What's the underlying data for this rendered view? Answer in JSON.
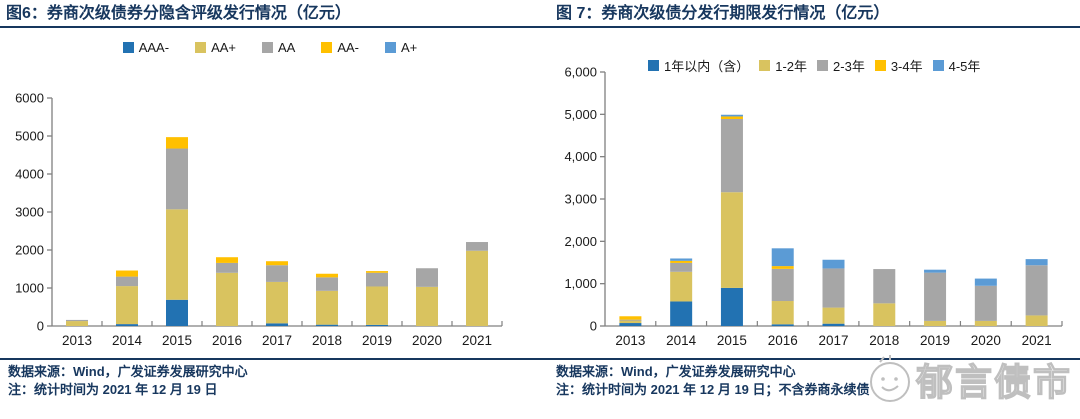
{
  "panels": [
    {
      "title": "图6：券商次级债券分隐含评级发行情况（亿元）",
      "footer_source": "数据来源：Wind，广发证券发展研究中心",
      "footer_note": "注：统计时间为 2021 年 12 月 19 日"
    },
    {
      "title": "图 7：券商次级债分发行期限发行情况（亿元）",
      "footer_source": "数据来源：Wind，广发证券发展研究中心",
      "footer_note": "注：统计时间为 2021 年 12 月 19 日；不含券商永续债",
      "watermark_text": "郁言债市"
    }
  ],
  "chart_data": [
    {
      "type": "bar",
      "stacked": true,
      "title": "图6：券商次级债券分隐含评级发行情况（亿元）",
      "categories": [
        "2013",
        "2014",
        "2015",
        "2016",
        "2017",
        "2018",
        "2019",
        "2020",
        "2021"
      ],
      "series": [
        {
          "name": "AAA-",
          "color": "#2272B2",
          "values": [
            0,
            50,
            690,
            0,
            70,
            35,
            30,
            0,
            0
          ]
        },
        {
          "name": "AA+",
          "color": "#D9C35F",
          "values": [
            130,
            1000,
            2380,
            1400,
            1090,
            890,
            1010,
            1030,
            1980
          ]
        },
        {
          "name": "AA",
          "color": "#A6A6A6",
          "values": [
            30,
            250,
            1600,
            260,
            440,
            355,
            360,
            490,
            230
          ]
        },
        {
          "name": "AA-",
          "color": "#FFC000",
          "values": [
            0,
            160,
            300,
            150,
            105,
            95,
            45,
            0,
            0
          ]
        },
        {
          "name": "A+",
          "color": "#5B9BD5",
          "values": [
            0,
            0,
            0,
            0,
            0,
            0,
            0,
            0,
            0
          ]
        }
      ],
      "ylim": [
        0,
        6000
      ],
      "ytick_step": 1000,
      "ytick_comma": false,
      "legend_position": "top-center",
      "grid": false
    },
    {
      "type": "bar",
      "stacked": true,
      "title": "图 7：券商次级债分发行期限发行情况（亿元）",
      "categories": [
        "2013",
        "2014",
        "2015",
        "2016",
        "2017",
        "2018",
        "2019",
        "2020",
        "2021"
      ],
      "series": [
        {
          "name": "1年以内（含）",
          "color": "#2272B2",
          "values": [
            70,
            580,
            900,
            40,
            55,
            0,
            0,
            0,
            0
          ]
        },
        {
          "name": "1-2年",
          "color": "#D9C35F",
          "values": [
            70,
            700,
            2260,
            550,
            380,
            535,
            120,
            120,
            250
          ]
        },
        {
          "name": "2-3年",
          "color": "#A6A6A6",
          "values": [
            10,
            210,
            1730,
            760,
            925,
            810,
            1140,
            830,
            1185
          ]
        },
        {
          "name": "3-4年",
          "color": "#FFC000",
          "values": [
            80,
            50,
            60,
            65,
            0,
            0,
            0,
            0,
            0
          ]
        },
        {
          "name": "4-5年",
          "color": "#5B9BD5",
          "values": [
            0,
            55,
            40,
            420,
            205,
            0,
            70,
            170,
            145
          ]
        }
      ],
      "ylim": [
        0,
        6000
      ],
      "ytick_step": 1000,
      "ytick_comma": true,
      "legend_position": "top-inside",
      "grid": false
    }
  ],
  "style_colors": {
    "title_navy": "#17375E",
    "axis_gray": "#808080",
    "label_black": "#1a1a1a",
    "watermark_gray": "#bfbfbf"
  }
}
